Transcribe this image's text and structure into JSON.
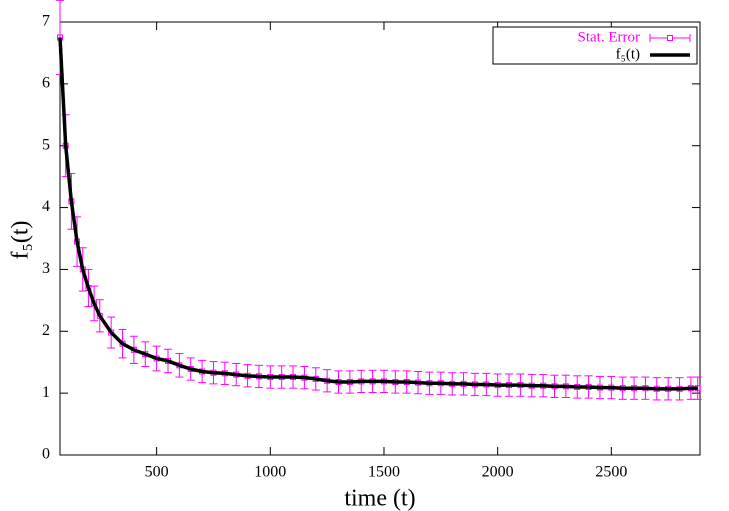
{
  "chart_data": {
    "type": "line",
    "x_label": "time (t)",
    "y_label": "f₅(t)",
    "xlim": [
      75,
      2890
    ],
    "ylim": [
      0,
      7
    ],
    "xticks": [
      500,
      1000,
      1500,
      2000,
      2500
    ],
    "yticks": [
      0,
      1,
      2,
      3,
      4,
      5,
      6,
      7
    ],
    "legend": "upper right",
    "x": [
      75,
      100,
      125,
      150,
      175,
      200,
      225,
      250,
      300,
      350,
      400,
      450,
      500,
      550,
      600,
      650,
      700,
      750,
      800,
      850,
      900,
      950,
      1000,
      1050,
      1100,
      1150,
      1200,
      1250,
      1300,
      1350,
      1400,
      1450,
      1500,
      1550,
      1600,
      1650,
      1700,
      1750,
      1800,
      1850,
      1900,
      1950,
      2000,
      2050,
      2100,
      2150,
      2200,
      2250,
      2300,
      2350,
      2400,
      2450,
      2500,
      2550,
      2600,
      2650,
      2700,
      2750,
      2800,
      2850,
      2880
    ],
    "series": [
      {
        "name": "Stat. Error",
        "color": "#ff00ff",
        "values": [
          6.75,
          5.0,
          4.1,
          3.45,
          3.0,
          2.7,
          2.45,
          2.25,
          1.98,
          1.8,
          1.7,
          1.63,
          1.56,
          1.52,
          1.45,
          1.39,
          1.35,
          1.33,
          1.32,
          1.3,
          1.28,
          1.27,
          1.26,
          1.26,
          1.26,
          1.25,
          1.23,
          1.2,
          1.18,
          1.18,
          1.19,
          1.19,
          1.19,
          1.18,
          1.18,
          1.17,
          1.16,
          1.16,
          1.15,
          1.15,
          1.14,
          1.14,
          1.13,
          1.13,
          1.13,
          1.12,
          1.12,
          1.11,
          1.11,
          1.1,
          1.1,
          1.09,
          1.09,
          1.08,
          1.08,
          1.08,
          1.07,
          1.07,
          1.07,
          1.08,
          1.08
        ],
        "errors": [
          0.6,
          0.5,
          0.45,
          0.4,
          0.35,
          0.3,
          0.28,
          0.26,
          0.25,
          0.23,
          0.22,
          0.2,
          0.2,
          0.19,
          0.19,
          0.18,
          0.18,
          0.18,
          0.18,
          0.18,
          0.18,
          0.18,
          0.18,
          0.18,
          0.18,
          0.18,
          0.18,
          0.18,
          0.18,
          0.18,
          0.18,
          0.18,
          0.18,
          0.18,
          0.18,
          0.18,
          0.18,
          0.18,
          0.18,
          0.18,
          0.18,
          0.18,
          0.18,
          0.18,
          0.18,
          0.18,
          0.18,
          0.18,
          0.18,
          0.18,
          0.18,
          0.18,
          0.18,
          0.18,
          0.18,
          0.18,
          0.18,
          0.18,
          0.18,
          0.18,
          0.18
        ]
      },
      {
        "name": "f₅(t)",
        "color": "#000000",
        "values": [
          6.75,
          5.0,
          4.1,
          3.45,
          3.0,
          2.7,
          2.45,
          2.25,
          1.98,
          1.8,
          1.7,
          1.63,
          1.56,
          1.52,
          1.45,
          1.39,
          1.35,
          1.33,
          1.32,
          1.3,
          1.28,
          1.27,
          1.26,
          1.26,
          1.26,
          1.25,
          1.23,
          1.2,
          1.18,
          1.18,
          1.19,
          1.19,
          1.19,
          1.18,
          1.18,
          1.17,
          1.16,
          1.16,
          1.15,
          1.15,
          1.14,
          1.14,
          1.13,
          1.13,
          1.13,
          1.12,
          1.12,
          1.11,
          1.11,
          1.1,
          1.1,
          1.09,
          1.09,
          1.08,
          1.08,
          1.08,
          1.07,
          1.07,
          1.07,
          1.08,
          1.08
        ]
      }
    ]
  }
}
